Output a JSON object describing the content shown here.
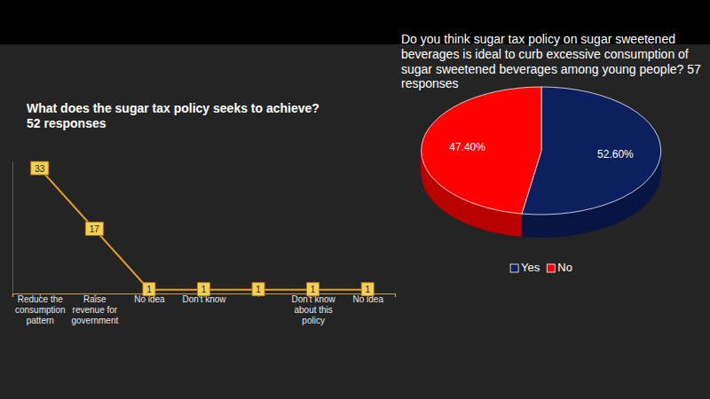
{
  "chart_data": [
    {
      "type": "line",
      "title": "What does the sugar tax policy seeks to achieve?",
      "subtitle": "52 responses",
      "categories": [
        "Reduce the consumption pattern",
        "Raise revenue for government",
        "No idea",
        "Don't know",
        null,
        "Don't know about this policy",
        "No idea"
      ],
      "values": [
        33,
        17,
        1,
        1,
        1,
        1,
        1
      ],
      "color": "#e8a020",
      "ylim": [
        0,
        35
      ],
      "tick_labels": "x",
      "data_labels": true,
      "marker": "square"
    },
    {
      "type": "pie",
      "title": "Do you think sugar tax policy on sugar sweetened beverages is ideal to curb excessive consumption of sugar sweetened beverages among young people? 57 responses",
      "categories": [
        "Yes",
        "No"
      ],
      "values": [
        52.6,
        47.4
      ],
      "value_labels": [
        "52.60%",
        "47.40%"
      ],
      "colors": [
        "#0c1f5e",
        "#ff0000"
      ],
      "data_labels": true,
      "legend": "bottom"
    }
  ]
}
